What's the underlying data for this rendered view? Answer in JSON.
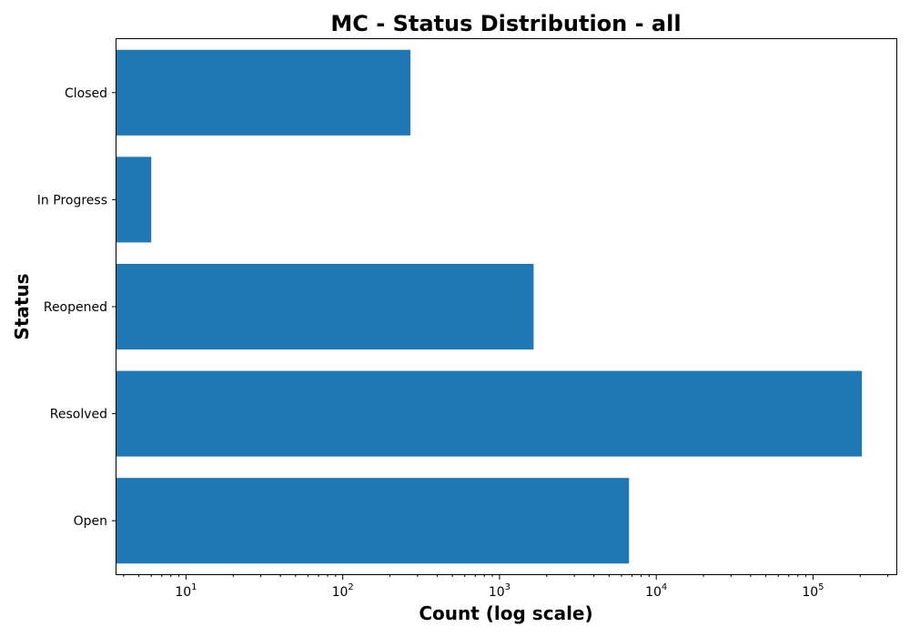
{
  "chart_data": {
    "type": "bar",
    "orientation": "horizontal",
    "title": "MC - Status Distribution - all",
    "xlabel": "Count (log scale)",
    "ylabel": "Status",
    "xscale": "log",
    "xlim": [
      3.6,
      340000
    ],
    "x_ticks": [
      {
        "value": 10,
        "base": "10",
        "exp": "1"
      },
      {
        "value": 100,
        "base": "10",
        "exp": "2"
      },
      {
        "value": 1000,
        "base": "10",
        "exp": "3"
      },
      {
        "value": 10000,
        "base": "10",
        "exp": "4"
      },
      {
        "value": 100000,
        "base": "10",
        "exp": "5"
      }
    ],
    "categories": [
      "Closed",
      "In Progress",
      "Reopened",
      "Resolved",
      "Open"
    ],
    "values": [
      270,
      6,
      1650,
      205000,
      6700
    ],
    "grid": false,
    "legend": "none",
    "bar_color": "#1f77b4"
  }
}
